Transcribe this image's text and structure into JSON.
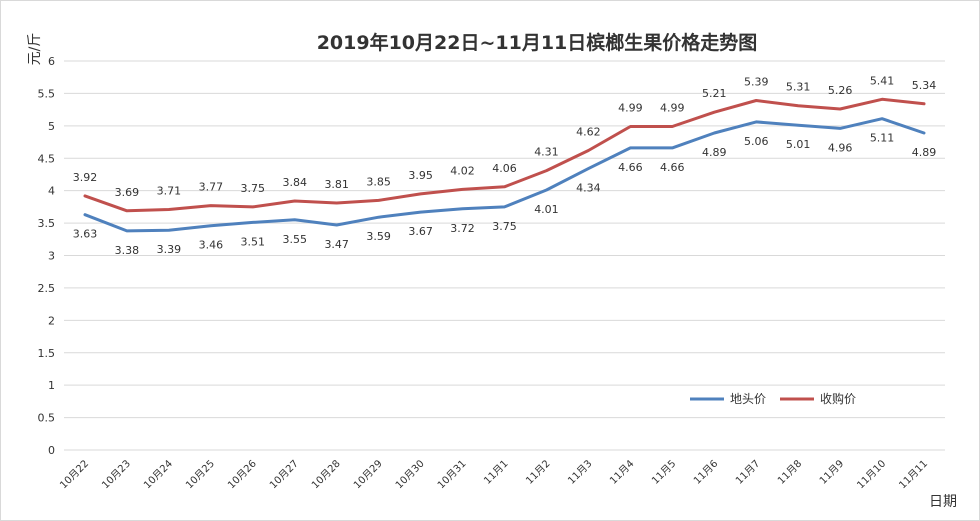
{
  "chart_data": {
    "type": "line",
    "title": "2019年10月22日~11月11日槟榔生果价格走势图",
    "xlabel": "日期",
    "ylabel": "元/斤",
    "ylim": [
      0,
      6
    ],
    "yticks": [
      0,
      0.5,
      1,
      1.5,
      2,
      2.5,
      3,
      3.5,
      4,
      4.5,
      5,
      5.5,
      6
    ],
    "grid": true,
    "legend_position": "bottom-right",
    "categories": [
      "10月22",
      "10月23",
      "10月24",
      "10月25",
      "10月26",
      "10月27",
      "10月28",
      "10月29",
      "10月30",
      "10月31",
      "11月1",
      "11月2",
      "11月3",
      "11月4",
      "11月5",
      "11月6",
      "11月7",
      "11月8",
      "11月9",
      "11月10",
      "11月11"
    ],
    "series": [
      {
        "name": "地头价",
        "color": "#4f81bd",
        "values": [
          3.63,
          3.38,
          3.39,
          3.46,
          3.51,
          3.55,
          3.47,
          3.59,
          3.67,
          3.72,
          3.75,
          4.01,
          4.34,
          4.66,
          4.66,
          4.89,
          5.06,
          5.01,
          4.96,
          5.11,
          4.89
        ],
        "labels": [
          "3.63",
          "3.38",
          "3.39",
          "3.46",
          "3.51",
          "3.55",
          "3.47",
          "3.59",
          "3.67",
          "3.72",
          "3.75",
          "4.01",
          "4.34",
          "4.66",
          "4.66",
          "4.89",
          "5.06",
          "5.01",
          "4.96",
          "5.11",
          "4.89"
        ]
      },
      {
        "name": "收购价",
        "color": "#c0504d",
        "values": [
          3.92,
          3.69,
          3.71,
          3.77,
          3.75,
          3.84,
          3.81,
          3.85,
          3.95,
          4.02,
          4.06,
          4.31,
          4.62,
          4.99,
          4.99,
          5.21,
          5.39,
          5.31,
          5.26,
          5.41,
          5.34
        ],
        "labels": [
          "3.92",
          "3.69",
          "3.71",
          "3.77",
          "3.75",
          "3.84",
          "3.81",
          "3.85",
          "3.95",
          "4.02",
          "4.06",
          "4.31",
          "4.62",
          "4.99",
          "4.99",
          "5.21",
          "5.39",
          "5.31",
          "5.26",
          "5.41",
          "5.34"
        ]
      }
    ]
  }
}
